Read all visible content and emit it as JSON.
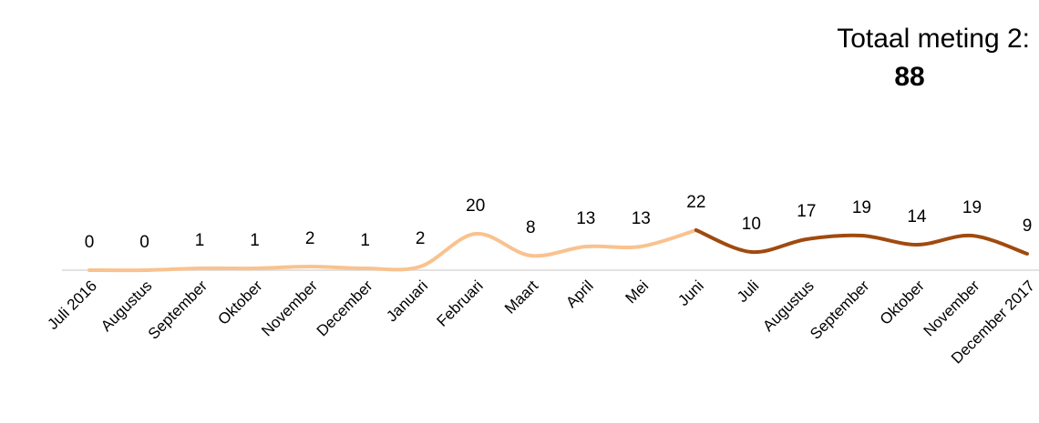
{
  "chart_data": {
    "type": "line",
    "annotation": "Totaal meting 2:",
    "total": 88,
    "categories": [
      "Juli 2016",
      "Augustus",
      "September",
      "Oktober",
      "November",
      "December",
      "Januari",
      "Februari",
      "Maart",
      "April",
      "Mei",
      "Juni",
      "Juli",
      "Augustus",
      "September",
      "Oktober",
      "November",
      "December 2017"
    ],
    "series": [
      {
        "color": "#f9c28f",
        "values": [
          0,
          0,
          1,
          1,
          2,
          1,
          2,
          20,
          8,
          13,
          13,
          22,
          null,
          null,
          null,
          null,
          null,
          null
        ]
      },
      {
        "color": "#a04a0f",
        "values": [
          null,
          null,
          null,
          null,
          null,
          null,
          null,
          null,
          null,
          null,
          null,
          22,
          10,
          17,
          19,
          14,
          19,
          9
        ]
      }
    ],
    "smooth": true
  }
}
